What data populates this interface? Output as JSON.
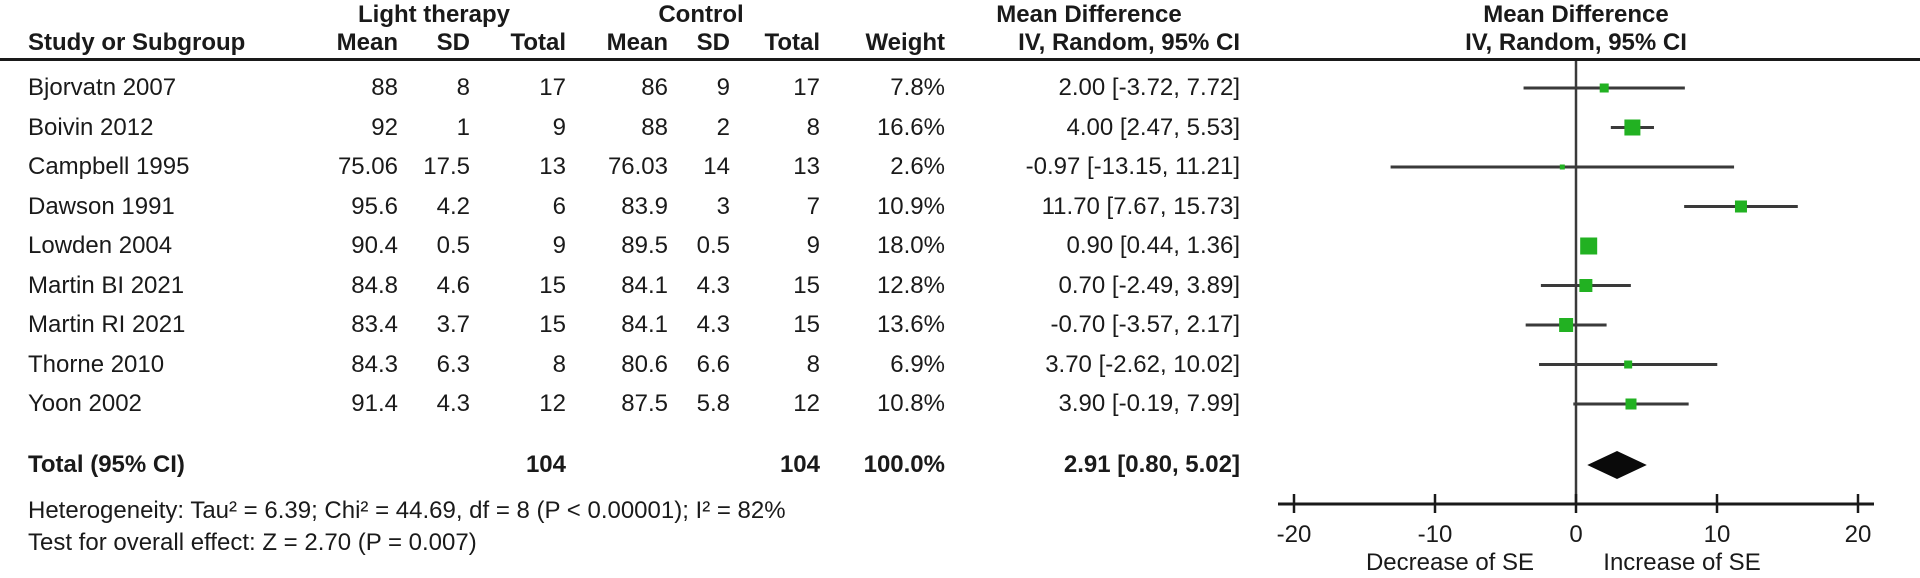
{
  "table": {
    "group_headers": {
      "light_therapy": "Light therapy",
      "control": "Control",
      "mean_difference_text": "Mean Difference",
      "mean_difference_plot": "Mean Difference"
    },
    "column_headers": {
      "study": "Study or Subgroup",
      "mean_1": "Mean",
      "sd_1": "SD",
      "total_1": "Total",
      "mean_2": "Mean",
      "sd_2": "SD",
      "total_2": "Total",
      "weight": "Weight",
      "iv_text": "IV, Random, 95% CI",
      "iv_plot": "IV, Random, 95% CI"
    },
    "rows": [
      {
        "study": "Bjorvatn 2007",
        "mean1": "88",
        "sd1": "8",
        "total1": "17",
        "mean2": "86",
        "sd2": "9",
        "total2": "17",
        "weight": "7.8%",
        "ci": "2.00 [-3.72, 7.72]"
      },
      {
        "study": "Boivin 2012",
        "mean1": "92",
        "sd1": "1",
        "total1": "9",
        "mean2": "88",
        "sd2": "2",
        "total2": "8",
        "weight": "16.6%",
        "ci": "4.00 [2.47, 5.53]"
      },
      {
        "study": "Campbell 1995",
        "mean1": "75.06",
        "sd1": "17.5",
        "total1": "13",
        "mean2": "76.03",
        "sd2": "14",
        "total2": "13",
        "weight": "2.6%",
        "ci": "-0.97 [-13.15, 11.21]"
      },
      {
        "study": "Dawson 1991",
        "mean1": "95.6",
        "sd1": "4.2",
        "total1": "6",
        "mean2": "83.9",
        "sd2": "3",
        "total2": "7",
        "weight": "10.9%",
        "ci": "11.70 [7.67, 15.73]"
      },
      {
        "study": "Lowden 2004",
        "mean1": "90.4",
        "sd1": "0.5",
        "total1": "9",
        "mean2": "89.5",
        "sd2": "0.5",
        "total2": "9",
        "weight": "18.0%",
        "ci": "0.90 [0.44, 1.36]"
      },
      {
        "study": "Martin BI 2021",
        "mean1": "84.8",
        "sd1": "4.6",
        "total1": "15",
        "mean2": "84.1",
        "sd2": "4.3",
        "total2": "15",
        "weight": "12.8%",
        "ci": "0.70 [-2.49, 3.89]"
      },
      {
        "study": "Martin RI 2021",
        "mean1": "83.4",
        "sd1": "3.7",
        "total1": "15",
        "mean2": "84.1",
        "sd2": "4.3",
        "total2": "15",
        "weight": "13.6%",
        "ci": "-0.70 [-3.57, 2.17]"
      },
      {
        "study": "Thorne 2010",
        "mean1": "84.3",
        "sd1": "6.3",
        "total1": "8",
        "mean2": "80.6",
        "sd2": "6.6",
        "total2": "8",
        "weight": "6.9%",
        "ci": "3.70 [-2.62, 10.02]"
      },
      {
        "study": "Yoon 2002",
        "mean1": "91.4",
        "sd1": "4.3",
        "total1": "12",
        "mean2": "87.5",
        "sd2": "5.8",
        "total2": "12",
        "weight": "10.8%",
        "ci": "3.90 [-0.19, 7.99]"
      }
    ],
    "total_row": {
      "label": "Total (95% CI)",
      "total1": "104",
      "total2": "104",
      "weight": "100.0%",
      "ci": "2.91 [0.80, 5.02]"
    },
    "heterogeneity": "Heterogeneity: Tau² = 6.39; Chi² = 44.69, df = 8 (P < 0.00001); I² = 82%",
    "overall_effect": "Test for overall effect: Z = 2.70 (P = 0.007)"
  },
  "chart_data": {
    "type": "forest",
    "effect_measure": "Mean Difference, IV, Random, 95% CI",
    "x_ticks": [
      -20,
      -10,
      0,
      10,
      20
    ],
    "x_range": [
      -21,
      21
    ],
    "axis_label_left": "Decrease of SE",
    "axis_label_right": "Increase of SE",
    "studies": [
      {
        "label": "Bjorvatn 2007",
        "md": 2.0,
        "ci_low": -3.72,
        "ci_high": 7.72,
        "weight_pct": 7.8
      },
      {
        "label": "Boivin 2012",
        "md": 4.0,
        "ci_low": 2.47,
        "ci_high": 5.53,
        "weight_pct": 16.6
      },
      {
        "label": "Campbell 1995",
        "md": -0.97,
        "ci_low": -13.15,
        "ci_high": 11.21,
        "weight_pct": 2.6
      },
      {
        "label": "Dawson 1991",
        "md": 11.7,
        "ci_low": 7.67,
        "ci_high": 15.73,
        "weight_pct": 10.9
      },
      {
        "label": "Lowden 2004",
        "md": 0.9,
        "ci_low": 0.44,
        "ci_high": 1.36,
        "weight_pct": 18.0
      },
      {
        "label": "Martin BI 2021",
        "md": 0.7,
        "ci_low": -2.49,
        "ci_high": 3.89,
        "weight_pct": 12.8
      },
      {
        "label": "Martin RI 2021",
        "md": -0.7,
        "ci_low": -3.57,
        "ci_high": 2.17,
        "weight_pct": 13.6
      },
      {
        "label": "Thorne 2010",
        "md": 3.7,
        "ci_low": -2.62,
        "ci_high": 10.02,
        "weight_pct": 6.9
      },
      {
        "label": "Yoon 2002",
        "md": 3.9,
        "ci_low": -0.19,
        "ci_high": 7.99,
        "weight_pct": 10.8
      }
    ],
    "total": {
      "label": "Total (95% CI)",
      "md": 2.91,
      "ci_low": 0.8,
      "ci_high": 5.02
    },
    "colors": {
      "marker": "#22b122",
      "diamond": "#0a0a0a",
      "line": "#3a3a3a",
      "text": "#1a1a1a"
    }
  }
}
